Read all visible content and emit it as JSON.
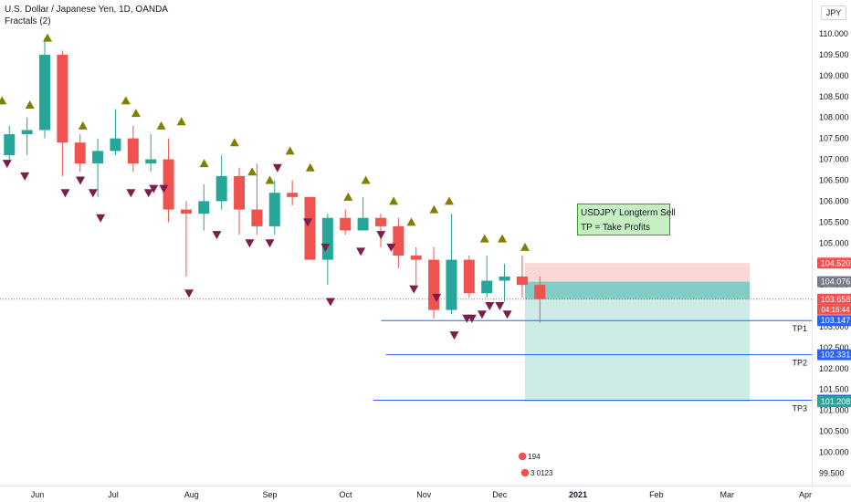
{
  "header": {
    "title": "U.S. Dollar / Japanese Yen, 1D, OANDA",
    "indicator": "Fractals (2)",
    "currency_button": "JPY"
  },
  "note": {
    "line1": "USDJPY Longterm Sell",
    "line2": "TP = Take Profits"
  },
  "colors": {
    "up": "#26a69a",
    "down": "#ef5350",
    "fractal_up": "#808000",
    "fractal_down": "#7b1e4a",
    "stop_zone": "#f9d7d7",
    "profit_zone": "#cdece8",
    "tp_line": "#2962ff"
  },
  "chart_data": {
    "type": "candlestick",
    "symbol": "USDJPY",
    "timeframe": "1D",
    "ylim": [
      99.3,
      110.5
    ],
    "y_ticks": [
      "110.000",
      "109.500",
      "109.000",
      "108.500",
      "108.000",
      "107.500",
      "107.000",
      "106.500",
      "106.000",
      "105.500",
      "105.000",
      "104.500",
      "104.000",
      "103.500",
      "103.000",
      "102.500",
      "102.000",
      "101.500",
      "101.000",
      "100.500",
      "100.000",
      "99.500"
    ],
    "x_ticks": [
      "Jun",
      "Jul",
      "Aug",
      "Sep",
      "Oct",
      "Nov",
      "Dec",
      "2021",
      "Feb",
      "Mar",
      "Apr"
    ],
    "price_labels": [
      {
        "value": 104.52,
        "text": "104.520",
        "color": "#ef5350"
      },
      {
        "value": 104.076,
        "text": "104.076",
        "color": "#787b86"
      },
      {
        "value": 103.658,
        "text": "103.658",
        "color": "#ef5350",
        "sub": "04:16:44"
      },
      {
        "value": 103.147,
        "text": "103.147",
        "color": "#2962ff"
      },
      {
        "value": 102.331,
        "text": "102.331",
        "color": "#2962ff"
      },
      {
        "value": 101.242,
        "text": "101.242",
        "color": "#2962ff"
      },
      {
        "value": 101.208,
        "text": "101.208",
        "color": "#26a69a"
      }
    ],
    "position": {
      "side": "short",
      "entry": 104.076,
      "stop": 104.52,
      "target": 101.208,
      "start_date": "2020-12-11",
      "end_date": "2021-03-10"
    },
    "take_profits": [
      {
        "label": "TP1",
        "value": 103.147,
        "from_date": "2020-10-15"
      },
      {
        "label": "TP2",
        "value": 102.331,
        "from_date": "2020-10-17"
      },
      {
        "label": "TP3",
        "value": 101.242,
        "from_date": "2020-10-12"
      }
    ],
    "current_price": 103.658,
    "candles_weekly_approx": [
      {
        "date": "2020-05-18",
        "o": 107.1,
        "h": 107.8,
        "l": 106.9,
        "c": 107.6
      },
      {
        "date": "2020-05-25",
        "o": 107.6,
        "h": 108.0,
        "l": 107.1,
        "c": 107.7
      },
      {
        "date": "2020-06-01",
        "o": 107.7,
        "h": 109.9,
        "l": 107.5,
        "c": 109.5
      },
      {
        "date": "2020-06-08",
        "o": 109.5,
        "h": 109.6,
        "l": 106.6,
        "c": 107.4
      },
      {
        "date": "2020-06-15",
        "o": 107.4,
        "h": 107.6,
        "l": 106.7,
        "c": 106.9
      },
      {
        "date": "2020-06-22",
        "o": 106.9,
        "h": 107.5,
        "l": 106.1,
        "c": 107.2
      },
      {
        "date": "2020-06-29",
        "o": 107.2,
        "h": 108.2,
        "l": 107.1,
        "c": 107.5
      },
      {
        "date": "2020-07-06",
        "o": 107.5,
        "h": 107.8,
        "l": 106.7,
        "c": 106.9
      },
      {
        "date": "2020-07-13",
        "o": 106.9,
        "h": 107.6,
        "l": 106.7,
        "c": 107.0
      },
      {
        "date": "2020-07-20",
        "o": 107.0,
        "h": 107.5,
        "l": 105.5,
        "c": 105.8
      },
      {
        "date": "2020-07-27",
        "o": 105.8,
        "h": 106.0,
        "l": 104.2,
        "c": 105.7
      },
      {
        "date": "2020-08-03",
        "o": 105.7,
        "h": 106.4,
        "l": 105.3,
        "c": 106.0
      },
      {
        "date": "2020-08-10",
        "o": 106.0,
        "h": 107.1,
        "l": 105.8,
        "c": 106.6
      },
      {
        "date": "2020-08-17",
        "o": 106.6,
        "h": 106.8,
        "l": 105.2,
        "c": 105.8
      },
      {
        "date": "2020-08-24",
        "o": 105.8,
        "h": 106.9,
        "l": 105.2,
        "c": 105.4
      },
      {
        "date": "2020-08-31",
        "o": 105.4,
        "h": 106.5,
        "l": 105.2,
        "c": 106.2
      },
      {
        "date": "2020-09-07",
        "o": 106.2,
        "h": 106.5,
        "l": 105.9,
        "c": 106.1
      },
      {
        "date": "2020-09-14",
        "o": 106.1,
        "h": 106.1,
        "l": 104.7,
        "c": 104.6
      },
      {
        "date": "2020-09-21",
        "o": 104.6,
        "h": 105.7,
        "l": 104.0,
        "c": 105.6
      },
      {
        "date": "2020-09-28",
        "o": 105.6,
        "h": 105.8,
        "l": 105.2,
        "c": 105.3
      },
      {
        "date": "2020-10-05",
        "o": 105.3,
        "h": 106.1,
        "l": 105.3,
        "c": 105.6
      },
      {
        "date": "2020-10-12",
        "o": 105.6,
        "h": 105.7,
        "l": 104.9,
        "c": 105.4
      },
      {
        "date": "2020-10-19",
        "o": 105.4,
        "h": 105.6,
        "l": 104.4,
        "c": 104.7
      },
      {
        "date": "2020-10-26",
        "o": 104.7,
        "h": 104.9,
        "l": 104.0,
        "c": 104.6
      },
      {
        "date": "2020-11-02",
        "o": 104.6,
        "h": 104.9,
        "l": 103.2,
        "c": 103.4
      },
      {
        "date": "2020-11-09",
        "o": 103.4,
        "h": 105.7,
        "l": 103.3,
        "c": 104.6
      },
      {
        "date": "2020-11-16",
        "o": 104.6,
        "h": 104.7,
        "l": 103.7,
        "c": 103.8
      },
      {
        "date": "2020-11-23",
        "o": 103.8,
        "h": 104.7,
        "l": 103.7,
        "c": 104.1
      },
      {
        "date": "2020-11-30",
        "o": 104.1,
        "h": 104.5,
        "l": 103.6,
        "c": 104.2
      },
      {
        "date": "2020-12-07",
        "o": 104.2,
        "h": 104.7,
        "l": 103.7,
        "c": 104.0
      },
      {
        "date": "2020-12-14",
        "o": 104.0,
        "h": 104.2,
        "l": 103.1,
        "c": 103.66
      }
    ],
    "fractals_up": [
      {
        "date": "2020-05-18",
        "value": 108.4
      },
      {
        "date": "2020-05-29",
        "value": 108.3
      },
      {
        "date": "2020-06-05",
        "value": 109.9
      },
      {
        "date": "2020-06-19",
        "value": 107.8
      },
      {
        "date": "2020-07-06",
        "value": 108.4
      },
      {
        "date": "2020-07-10",
        "value": 108.1
      },
      {
        "date": "2020-07-20",
        "value": 107.8
      },
      {
        "date": "2020-07-28",
        "value": 107.9
      },
      {
        "date": "2020-08-06",
        "value": 106.9
      },
      {
        "date": "2020-08-18",
        "value": 107.4
      },
      {
        "date": "2020-08-25",
        "value": 106.7
      },
      {
        "date": "2020-09-01",
        "value": 106.5
      },
      {
        "date": "2020-09-09",
        "value": 107.2
      },
      {
        "date": "2020-09-17",
        "value": 106.8
      },
      {
        "date": "2020-10-02",
        "value": 106.1
      },
      {
        "date": "2020-10-09",
        "value": 106.5
      },
      {
        "date": "2020-10-20",
        "value": 106.0
      },
      {
        "date": "2020-10-27",
        "value": 105.5
      },
      {
        "date": "2020-11-05",
        "value": 105.8
      },
      {
        "date": "2020-11-11",
        "value": 106.0
      },
      {
        "date": "2020-11-25",
        "value": 105.1
      },
      {
        "date": "2020-12-02",
        "value": 105.1
      },
      {
        "date": "2020-12-11",
        "value": 104.9
      }
    ],
    "fractals_down": [
      {
        "date": "2020-05-20",
        "value": 106.9
      },
      {
        "date": "2020-05-27",
        "value": 106.6
      },
      {
        "date": "2020-06-12",
        "value": 106.2
      },
      {
        "date": "2020-06-18",
        "value": 106.5
      },
      {
        "date": "2020-06-23",
        "value": 106.2
      },
      {
        "date": "2020-06-26",
        "value": 105.6
      },
      {
        "date": "2020-07-08",
        "value": 106.2
      },
      {
        "date": "2020-07-15",
        "value": 106.2
      },
      {
        "date": "2020-07-17",
        "value": 106.3
      },
      {
        "date": "2020-07-21",
        "value": 106.3
      },
      {
        "date": "2020-07-31",
        "value": 103.8
      },
      {
        "date": "2020-08-11",
        "value": 105.2
      },
      {
        "date": "2020-08-24",
        "value": 105.0
      },
      {
        "date": "2020-09-01",
        "value": 105.0
      },
      {
        "date": "2020-09-04",
        "value": 106.8
      },
      {
        "date": "2020-09-16",
        "value": 105.5
      },
      {
        "date": "2020-09-23",
        "value": 104.9
      },
      {
        "date": "2020-09-25",
        "value": 103.6
      },
      {
        "date": "2020-10-07",
        "value": 104.8
      },
      {
        "date": "2020-10-15",
        "value": 105.2
      },
      {
        "date": "2020-10-19",
        "value": 104.9
      },
      {
        "date": "2020-10-28",
        "value": 103.9
      },
      {
        "date": "2020-11-06",
        "value": 103.7
      },
      {
        "date": "2020-11-13",
        "value": 102.8
      },
      {
        "date": "2020-11-18",
        "value": 103.2
      },
      {
        "date": "2020-11-20",
        "value": 103.2
      },
      {
        "date": "2020-11-24",
        "value": 103.3
      },
      {
        "date": "2020-11-27",
        "value": 103.5
      },
      {
        "date": "2020-12-01",
        "value": 103.5
      },
      {
        "date": "2020-12-04",
        "value": 103.3
      }
    ],
    "events": [
      {
        "date": "2020-12-10",
        "label": "194"
      },
      {
        "date": "2020-12-11",
        "label": "3 0123"
      }
    ]
  }
}
